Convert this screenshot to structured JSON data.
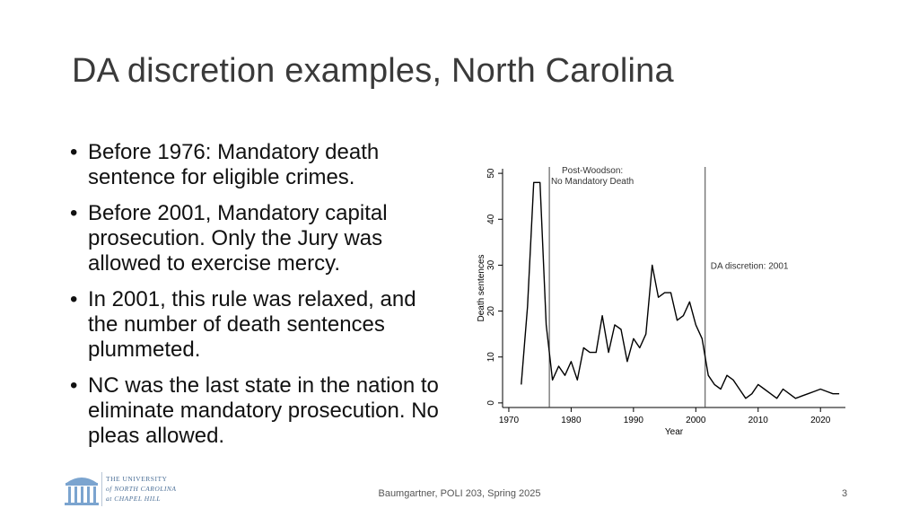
{
  "slide": {
    "title": "DA discretion examples, North Carolina",
    "bullets": [
      "Before 1976: Mandatory death sentence for eligible crimes.",
      "Before 2001, Mandatory capital prosecution. Only the Jury was allowed to exercise mercy.",
      "In 2001, this rule was relaxed, and the number of death sentences plummeted.",
      "NC was the last state in the nation to eliminate mandatory prosecution. No pleas allowed."
    ],
    "bullet_glyph": "•",
    "footer": "Baumgartner, POLI 203, Spring 2025",
    "page_number": "3",
    "logo": {
      "line1": "THE UNIVERSITY",
      "line2": "of NORTH CAROLINA",
      "line3": "at CHAPEL HILL",
      "color": "#4a6e96"
    }
  },
  "chart_data": {
    "type": "line",
    "xlabel": "Year",
    "ylabel": "Death sentences",
    "xlim": [
      1969,
      2024
    ],
    "ylim": [
      -1,
      51
    ],
    "xticks": [
      1970,
      1980,
      1990,
      2000,
      2010,
      2020
    ],
    "yticks": [
      0,
      10,
      20,
      30,
      40,
      50
    ],
    "grid": false,
    "series": [
      {
        "x": [
          1972,
          1973,
          1974,
          1975,
          1976,
          1977,
          1978,
          1979,
          1980,
          1981,
          1982,
          1983,
          1984,
          1985,
          1986,
          1987,
          1988,
          1989,
          1990,
          1991,
          1992,
          1993,
          1994,
          1995,
          1996,
          1997,
          1998,
          1999,
          2000,
          2001,
          2002,
          2003,
          2004,
          2005,
          2006,
          2007,
          2008,
          2009,
          2010,
          2011,
          2012,
          2013,
          2014,
          2015,
          2016,
          2017,
          2018,
          2019,
          2020,
          2021,
          2022,
          2023
        ],
        "y": [
          4,
          21,
          48,
          48,
          17,
          5,
          8,
          6,
          9,
          5,
          12,
          11,
          11,
          19,
          11,
          17,
          16,
          9,
          14,
          12,
          15,
          30,
          23,
          24,
          24,
          18,
          19,
          22,
          17,
          14,
          6,
          4,
          3,
          6,
          5,
          3,
          1,
          2,
          4,
          3,
          2,
          1,
          3,
          2,
          1,
          1.5,
          2,
          2.5,
          3,
          2.5,
          2,
          2
        ]
      }
    ],
    "annotations": [
      {
        "x": 1976.5,
        "label_lines": [
          "Post-Woodson:",
          "No Mandatory Death"
        ]
      },
      {
        "x": 2001.5,
        "label_lines": [
          "DA discretion: 2001"
        ]
      }
    ],
    "line_color": "#000000"
  }
}
